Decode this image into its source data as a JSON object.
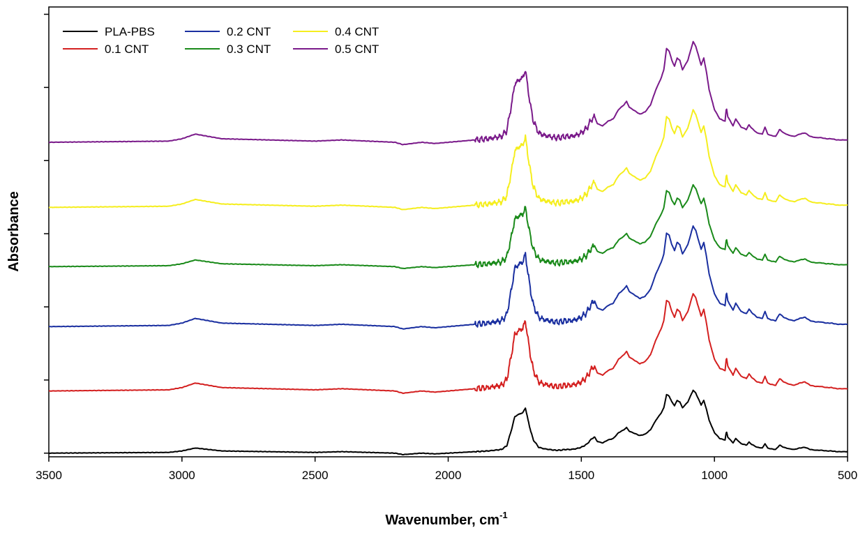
{
  "chart_data": {
    "type": "line",
    "title": "",
    "xlabel": "Wavenumber, cm",
    "xlabel_superscript": "-1",
    "ylabel": "Absorbance",
    "xlim": [
      3500,
      500
    ],
    "x_reversed": true,
    "xticks": [
      "3500",
      "3000",
      "2500",
      "2000",
      "1500",
      "1000",
      "500"
    ],
    "xtick_values": [
      3500,
      3000,
      2500,
      2000,
      1500,
      1000,
      500
    ],
    "yticks_labeled": false,
    "ylim": [
      -0.05,
      6.1
    ],
    "grid": false,
    "legend_position": "top-left",
    "legend": [
      {
        "name": "PLA-PBS",
        "color": "#000000"
      },
      {
        "name": "0.2 CNT",
        "color": "#1a2fa0"
      },
      {
        "name": "0.4 CNT",
        "color": "#f5ee1e"
      },
      {
        "name": "0.1 CNT",
        "color": "#d42020"
      },
      {
        "name": "0.3 CNT",
        "color": "#1a8a1a"
      },
      {
        "name": "0.5 CNT",
        "color": "#7a1a8a"
      }
    ],
    "series": [
      {
        "name": "PLA-PBS",
        "color": "#000000",
        "offset": 0.0,
        "amplitude": 1.0
      },
      {
        "name": "0.1 CNT",
        "color": "#d42020",
        "offset": 0.85,
        "amplitude": 1.55
      },
      {
        "name": "0.2 CNT",
        "color": "#1a2fa0",
        "offset": 1.73,
        "amplitude": 1.6
      },
      {
        "name": "0.3 CNT",
        "color": "#1a8a1a",
        "offset": 2.55,
        "amplitude": 1.3
      },
      {
        "name": "0.4 CNT",
        "color": "#f5ee1e",
        "offset": 3.36,
        "amplitude": 1.55
      },
      {
        "name": "0.5 CNT",
        "color": "#7a1a8a",
        "offset": 4.25,
        "amplitude": 1.6
      }
    ],
    "baseline_shape": {
      "x": [
        3500,
        3050,
        3000,
        2950,
        2900,
        2850,
        2500,
        2400,
        2300,
        2200,
        2170,
        2100,
        2050,
        2000,
        1950,
        1900,
        1850,
        1800,
        1780,
        1760,
        1750,
        1740,
        1730,
        1720,
        1710,
        1700,
        1690,
        1680,
        1660,
        1640,
        1620,
        1600,
        1580,
        1560,
        1540,
        1520,
        1500,
        1480,
        1460,
        1450,
        1440,
        1420,
        1400,
        1380,
        1360,
        1340,
        1330,
        1320,
        1300,
        1280,
        1260,
        1240,
        1220,
        1200,
        1190,
        1180,
        1170,
        1160,
        1150,
        1140,
        1130,
        1120,
        1110,
        1100,
        1090,
        1080,
        1070,
        1060,
        1050,
        1040,
        1030,
        1020,
        1000,
        980,
        960,
        955,
        950,
        940,
        930,
        920,
        900,
        880,
        870,
        860,
        840,
        820,
        810,
        800,
        790,
        770,
        755,
        740,
        720,
        700,
        680,
        660,
        640,
        620,
        600,
        580,
        560,
        540,
        520,
        500
      ],
      "y": [
        0.0,
        0.01,
        0.03,
        0.07,
        0.05,
        0.03,
        0.01,
        0.02,
        0.01,
        0.0,
        -0.02,
        0.0,
        -0.01,
        0.0,
        0.01,
        0.02,
        0.03,
        0.05,
        0.1,
        0.35,
        0.5,
        0.52,
        0.54,
        0.55,
        0.62,
        0.45,
        0.3,
        0.18,
        0.08,
        0.06,
        0.05,
        0.04,
        0.04,
        0.05,
        0.05,
        0.06,
        0.08,
        0.12,
        0.2,
        0.22,
        0.16,
        0.14,
        0.18,
        0.2,
        0.28,
        0.32,
        0.35,
        0.3,
        0.27,
        0.24,
        0.26,
        0.32,
        0.45,
        0.55,
        0.62,
        0.8,
        0.78,
        0.7,
        0.65,
        0.72,
        0.7,
        0.62,
        0.66,
        0.7,
        0.78,
        0.86,
        0.82,
        0.74,
        0.66,
        0.72,
        0.6,
        0.45,
        0.28,
        0.2,
        0.18,
        0.3,
        0.22,
        0.18,
        0.14,
        0.2,
        0.13,
        0.11,
        0.15,
        0.12,
        0.08,
        0.07,
        0.13,
        0.07,
        0.06,
        0.05,
        0.11,
        0.08,
        0.06,
        0.05,
        0.07,
        0.08,
        0.05,
        0.04,
        0.04,
        0.03,
        0.03,
        0.02,
        0.02,
        0.02
      ]
    }
  }
}
